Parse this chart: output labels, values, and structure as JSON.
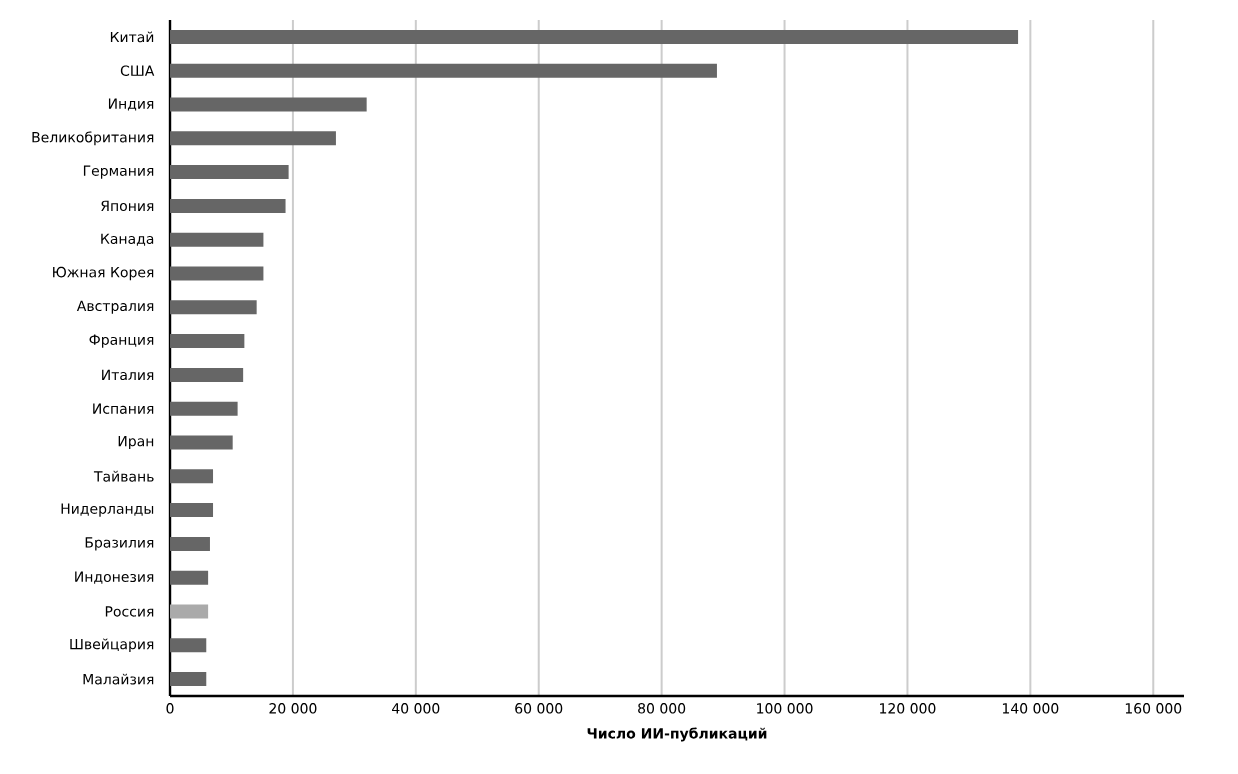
{
  "chart_data": {
    "type": "bar",
    "orientation": "horizontal",
    "xlabel": "Число ИИ-публикаций",
    "categories": [
      "Китай",
      "США",
      "Индия",
      "Великобритания",
      "Германия",
      "Япония",
      "Канада",
      "Южная Корея",
      "Австралия",
      "Франция",
      "Италия",
      "Испания",
      "Иран",
      "Тайвань",
      "Нидерланды",
      "Бразилия",
      "Индонезия",
      "Россия",
      "Швейцария",
      "Малайзия"
    ],
    "values": [
      138000,
      89000,
      32000,
      27000,
      19300,
      18800,
      15200,
      15200,
      14100,
      12100,
      11900,
      11000,
      10200,
      7000,
      7000,
      6500,
      6200,
      6200,
      5900,
      5900
    ],
    "colors": [
      "#666666",
      "#666666",
      "#666666",
      "#666666",
      "#666666",
      "#666666",
      "#666666",
      "#666666",
      "#666666",
      "#666666",
      "#666666",
      "#666666",
      "#666666",
      "#666666",
      "#666666",
      "#666666",
      "#666666",
      "#aaaaaa",
      "#666666",
      "#666666"
    ],
    "xlim": [
      0,
      165000
    ],
    "xticks": [
      0,
      {
        "value": 20000,
        "label": "20 000"
      },
      {
        "value": 40000,
        "label": "40 000"
      },
      {
        "value": 60000,
        "label": "60 000"
      },
      {
        "value": 80000,
        "label": "80 000"
      },
      {
        "value": 100000,
        "label": "100 000"
      },
      {
        "value": 120000,
        "label": "120 000"
      },
      {
        "value": 140000,
        "label": "140 000"
      },
      {
        "value": 160000,
        "label": "160 000"
      }
    ],
    "grid": "x"
  }
}
